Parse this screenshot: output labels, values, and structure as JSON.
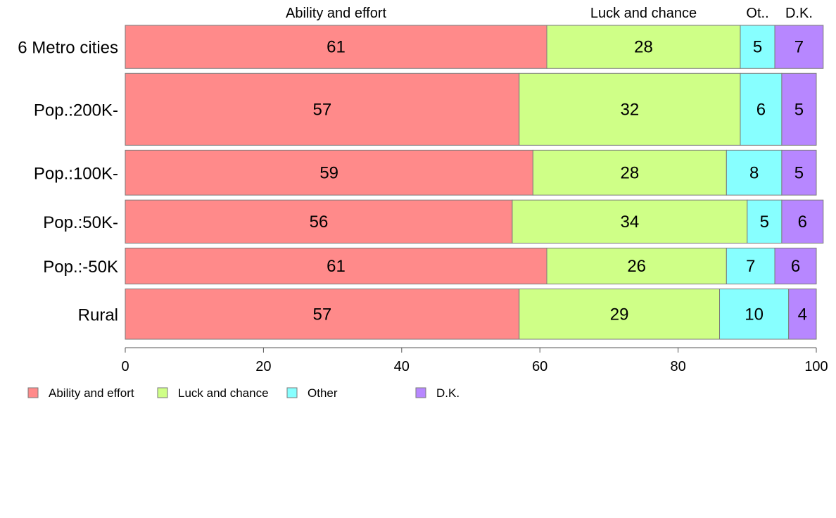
{
  "chart_data": {
    "type": "bar",
    "orientation": "horizontal",
    "stacked": true,
    "categories": [
      "6 Metro cities",
      "Pop.:200K-",
      "Pop.:100K-",
      "Pop.:50K-",
      "Pop.:-50K",
      "Rural"
    ],
    "row_weights": [
      1.2,
      2.0,
      1.25,
      1.2,
      1.0,
      1.4
    ],
    "series": [
      {
        "name": "Ability and effort",
        "color": "#FF8A8A",
        "values": [
          61,
          57,
          59,
          56,
          61,
          57
        ],
        "labels": [
          "61",
          "57",
          "59",
          "56",
          "61",
          "57"
        ]
      },
      {
        "name": "Luck and chance",
        "color": "#CFFF87",
        "values": [
          28,
          32,
          28,
          34,
          26,
          29
        ],
        "labels": [
          "28",
          "32",
          "28",
          "34",
          "26",
          "29"
        ]
      },
      {
        "name": "Other",
        "color": "#87FFFF",
        "values": [
          5,
          6,
          8,
          5,
          7,
          10
        ],
        "labels": [
          "5",
          "6",
          "8",
          "5",
          "7",
          "10"
        ]
      },
      {
        "name": "D.K.",
        "color": "#B787FF",
        "values": [
          7,
          5,
          5,
          6,
          6,
          4
        ],
        "labels": [
          "7",
          "5",
          "5",
          "6",
          "6",
          "4"
        ]
      }
    ],
    "top_labels": [
      "Ability and effort",
      "Luck and chance",
      "Ot..",
      "D.K."
    ],
    "xlim": [
      0,
      100
    ],
    "x_ticks": [
      0,
      20,
      40,
      60,
      80,
      100
    ],
    "x_tick_labels": [
      "0",
      "20",
      "40",
      "60",
      "80",
      "100"
    ],
    "legend": {
      "position": "bottom-left",
      "entries": [
        "Ability and effort",
        "Luck and chance",
        "Other",
        "D.K."
      ]
    },
    "grid": false
  }
}
